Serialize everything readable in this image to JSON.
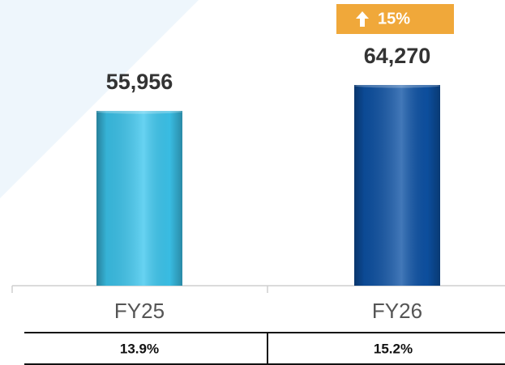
{
  "chart_data": {
    "type": "bar",
    "categories": [
      "FY25",
      "FY26"
    ],
    "values": [
      55956,
      64270
    ],
    "value_labels": [
      "55,956",
      "64,270"
    ],
    "colors": [
      "#3cc6ee",
      "#0d52a5"
    ],
    "annotation": "15%",
    "table_values": [
      "13.9%",
      "15.2%"
    ]
  }
}
